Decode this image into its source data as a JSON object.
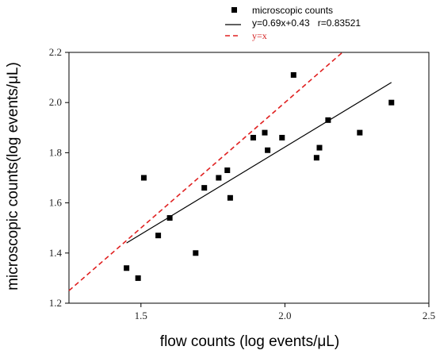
{
  "chart_data": {
    "type": "scatter",
    "xlabel": "flow counts (log events/μL)",
    "ylabel": "microscopic counts(log events/μL)",
    "xlim": [
      1.25,
      2.5
    ],
    "ylim": [
      1.2,
      2.2
    ],
    "xticks": [
      "1.5",
      "2.0",
      "2.5"
    ],
    "yticks": [
      "1.2",
      "1.4",
      "1.6",
      "1.8",
      "2.0",
      "2.2"
    ],
    "xtick_values": [
      1.5,
      2.0,
      2.5
    ],
    "ytick_values": [
      1.2,
      1.4,
      1.6,
      1.8,
      2.0,
      2.2
    ],
    "legend_position": "top-right",
    "series": [
      {
        "name": "microscopic counts",
        "kind": "points",
        "color": "#000000",
        "x": [
          1.45,
          1.49,
          1.51,
          1.56,
          1.6,
          1.69,
          1.72,
          1.77,
          1.8,
          1.81,
          1.89,
          1.93,
          1.94,
          1.99,
          2.03,
          2.11,
          2.12,
          2.15,
          2.26,
          2.37
        ],
        "y": [
          1.34,
          1.3,
          1.7,
          1.47,
          1.54,
          1.4,
          1.66,
          1.7,
          1.73,
          1.62,
          1.86,
          1.88,
          1.81,
          1.86,
          2.11,
          1.78,
          1.82,
          1.93,
          1.88,
          2.0
        ]
      },
      {
        "name": "y=0.69x+0.43   r=0.83521",
        "kind": "line",
        "color": "#000000",
        "x": [
          1.45,
          2.37
        ],
        "y": [
          1.44,
          2.08
        ]
      },
      {
        "name": "y=x",
        "kind": "dashed-line",
        "color": "#e02020",
        "x": [
          1.25,
          2.2
        ],
        "y": [
          1.25,
          2.2
        ]
      }
    ]
  }
}
